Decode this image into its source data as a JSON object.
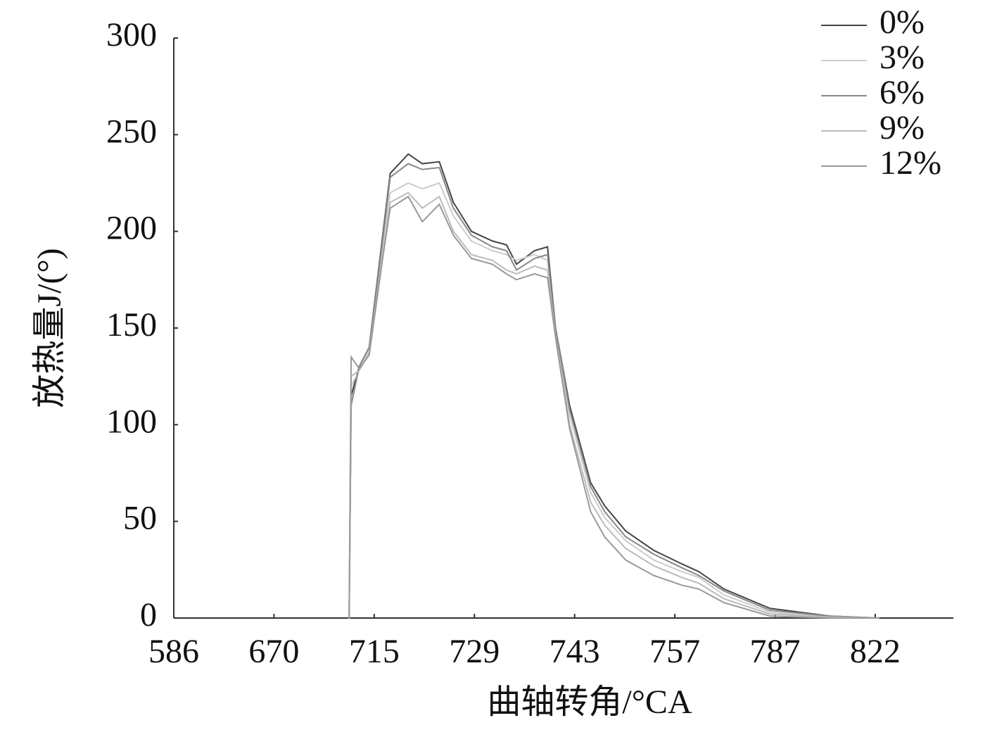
{
  "chart_data": {
    "type": "line",
    "x_label": "曲轴转角/°CA",
    "y_label": "放热量J/(°)",
    "x": [
      1.74,
      1.75,
      1.77,
      1.85,
      1.95,
      2.09,
      2.16,
      2.34,
      2.48,
      2.65,
      2.79,
      2.97,
      3.18,
      3.32,
      3.42,
      3.6,
      3.73,
      3.81,
      3.95,
      4.16,
      4.3,
      4.51,
      4.79,
      5.07,
      5.24,
      5.49,
      5.95,
      6.55,
      7.04
    ],
    "series": [
      {
        "name": "0%",
        "color": "#444444",
        "values": [
          0,
          0,
          115,
          130,
          140,
          200,
          230,
          240,
          235,
          236,
          215,
          200,
          195,
          193,
          183,
          190,
          192,
          150,
          110,
          70,
          58,
          45,
          35,
          28,
          24,
          15,
          5,
          1,
          0
        ]
      },
      {
        "name": "3%",
        "color": "#cccccc",
        "values": [
          0,
          0,
          120,
          128,
          138,
          195,
          220,
          225,
          222,
          225,
          208,
          195,
          190,
          188,
          185,
          188,
          185,
          148,
          105,
          65,
          52,
          40,
          30,
          24,
          21,
          12,
          3,
          0.5,
          0
        ]
      },
      {
        "name": "6%",
        "color": "#888888",
        "values": [
          0,
          0,
          110,
          130,
          140,
          198,
          228,
          235,
          232,
          233,
          212,
          198,
          192,
          190,
          180,
          186,
          188,
          150,
          108,
          68,
          55,
          42,
          33,
          26,
          22,
          14,
          4,
          1,
          0
        ]
      },
      {
        "name": "9%",
        "color": "#bbbbbb",
        "values": [
          0,
          0,
          125,
          128,
          137,
          190,
          215,
          220,
          212,
          218,
          200,
          188,
          185,
          180,
          178,
          182,
          180,
          146,
          100,
          60,
          48,
          36,
          27,
          21,
          18,
          10,
          2,
          0.5,
          0
        ]
      },
      {
        "name": "12%",
        "color": "#999999",
        "values": [
          0,
          0,
          135,
          129,
          136,
          188,
          212,
          218,
          205,
          214,
          198,
          186,
          183,
          178,
          175,
          178,
          176,
          145,
          98,
          55,
          42,
          30,
          22,
          17,
          15,
          8,
          1,
          0,
          0
        ]
      }
    ],
    "xlim": [
      0,
      7.78
    ],
    "xticks": [
      {
        "value": 0,
        "label": "586"
      },
      {
        "value": 1,
        "label": "670"
      },
      {
        "value": 2,
        "label": "715"
      },
      {
        "value": 3,
        "label": "729"
      },
      {
        "value": 4,
        "label": "743"
      },
      {
        "value": 5,
        "label": "757"
      },
      {
        "value": 6,
        "label": "787"
      },
      {
        "value": 7,
        "label": "822"
      }
    ],
    "ylim": [
      0,
      300
    ],
    "yticks": [
      0,
      50,
      100,
      150,
      200,
      250,
      300
    ],
    "legend": "upper-right"
  }
}
